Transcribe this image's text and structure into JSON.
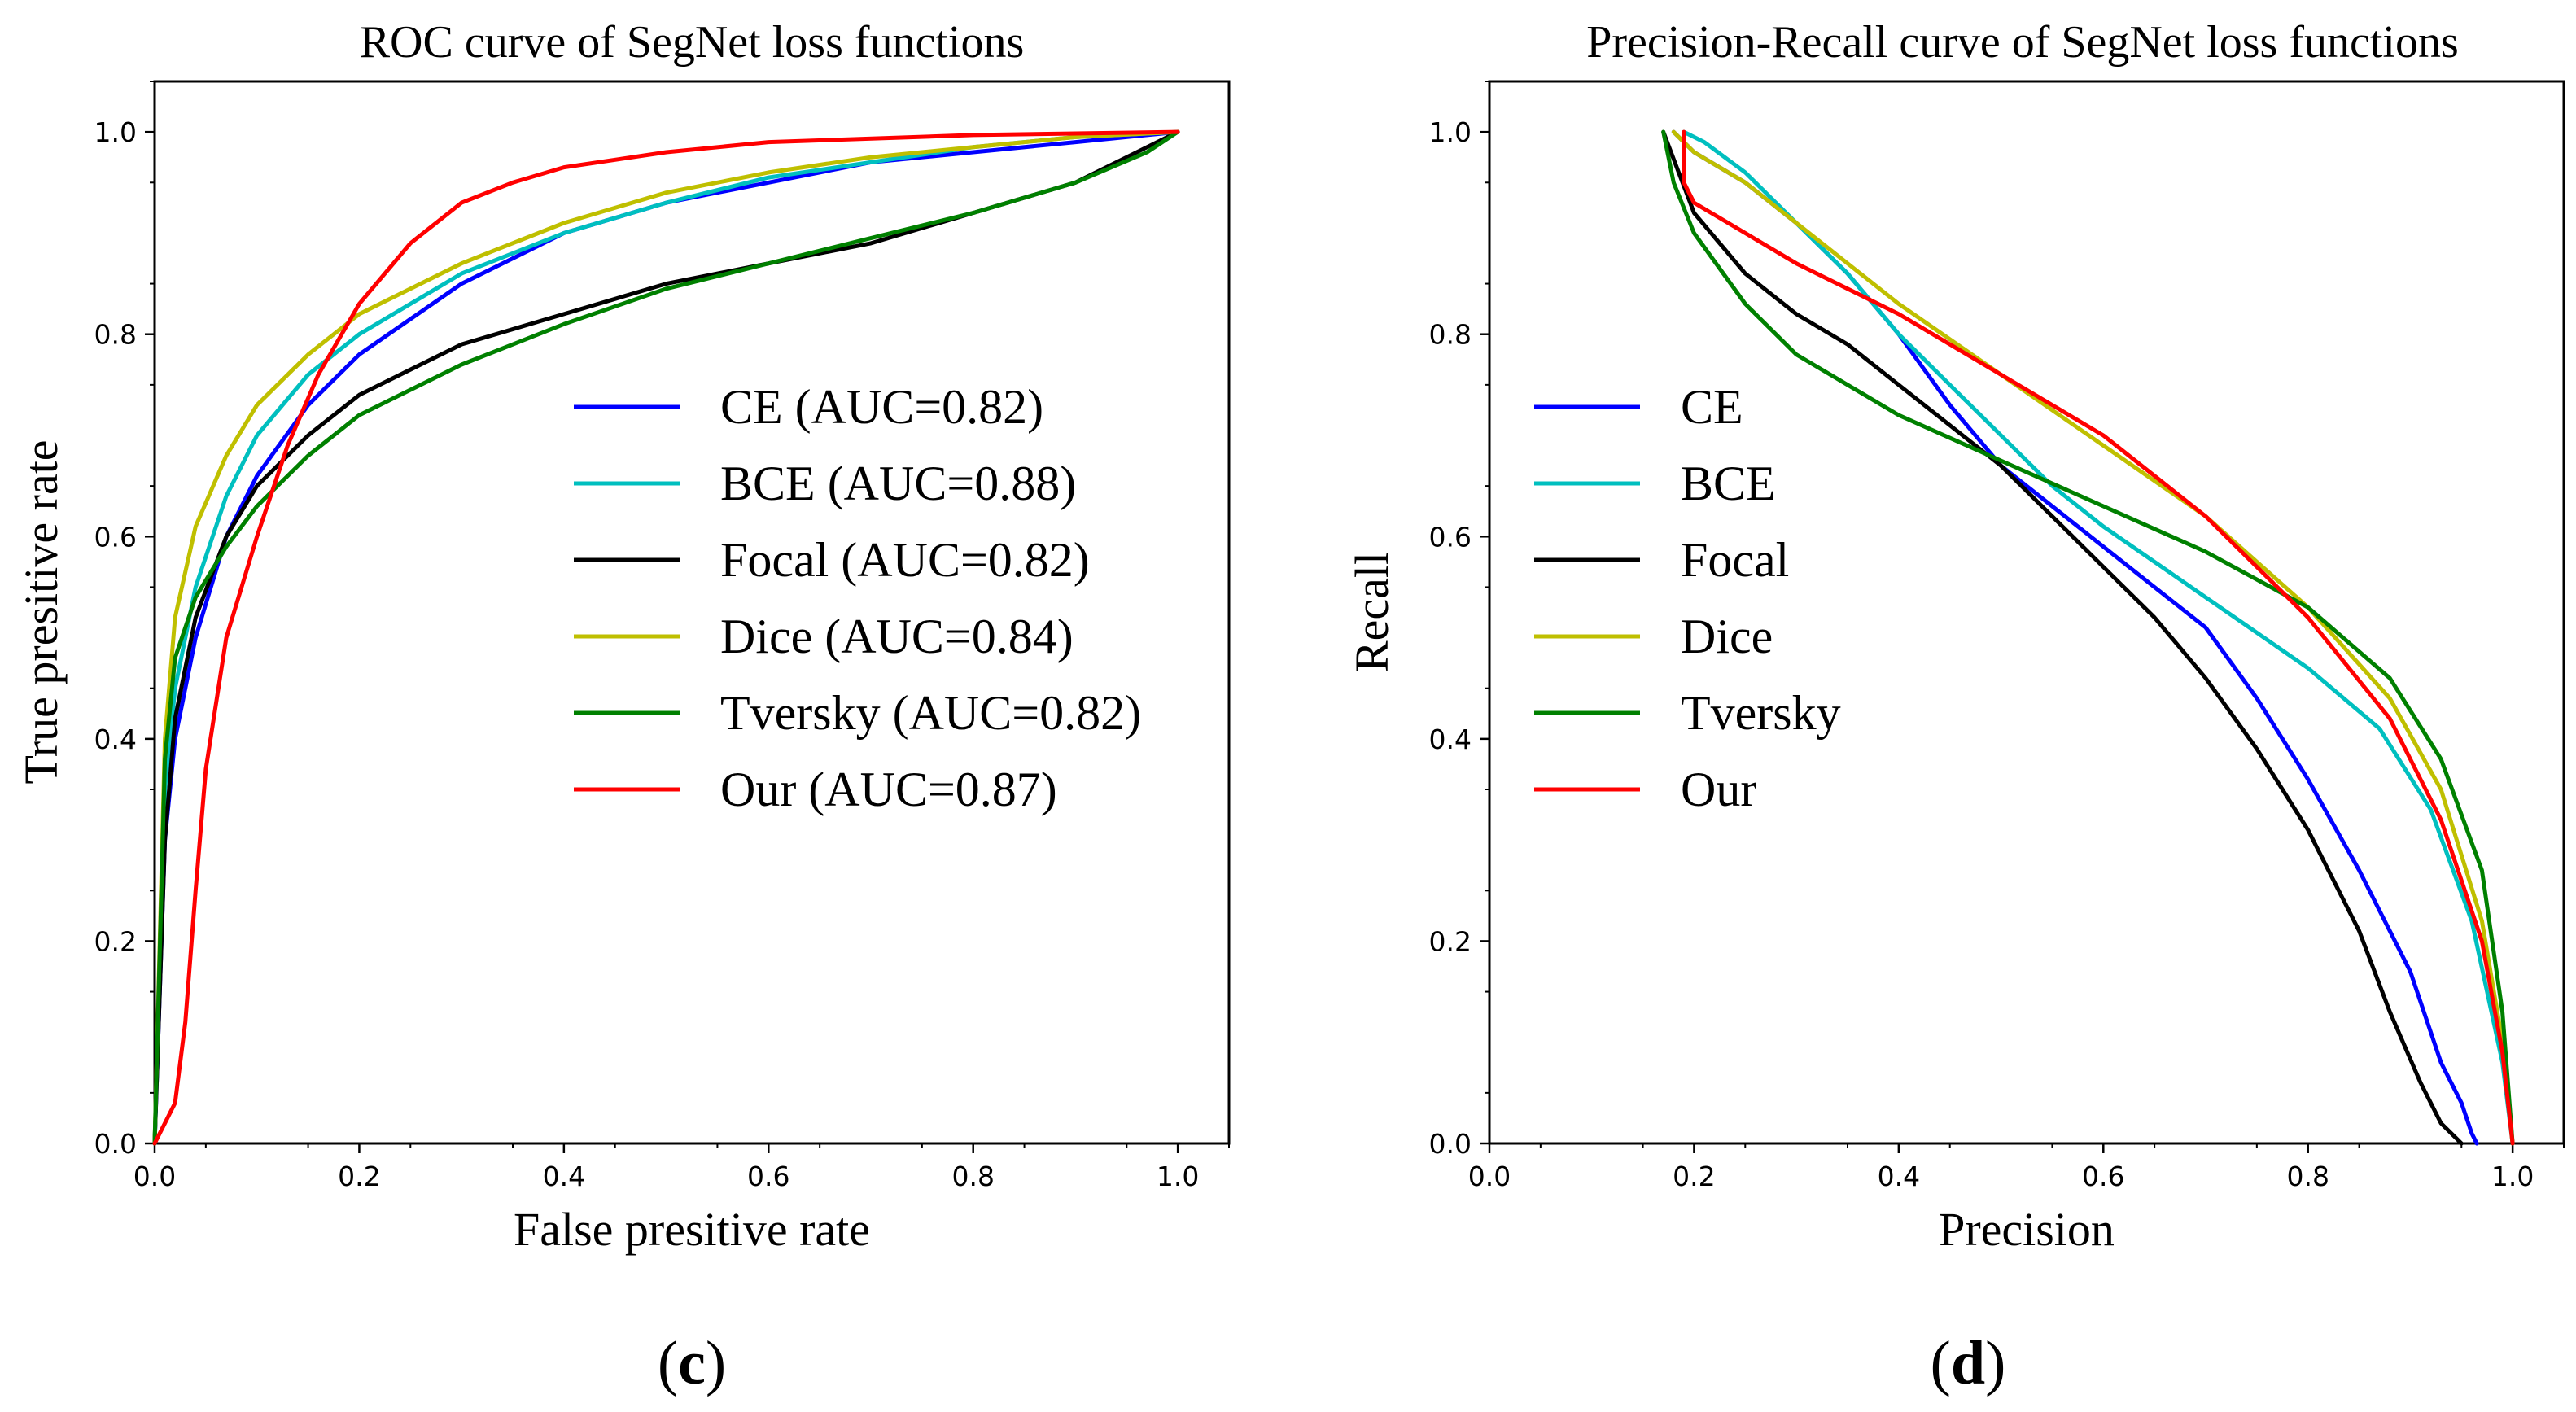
{
  "colors": {
    "CE": "#0000ff",
    "BCE": "#00bfbf",
    "Focal": "#000000",
    "Dice": "#bfbf00",
    "Tversky": "#008000",
    "Our": "#ff0000"
  },
  "chart_data": [
    {
      "type": "line",
      "title": "ROC curve of SegNet loss functions",
      "xlabel": "False presitive rate",
      "ylabel": "True presitive rate",
      "xlim": [
        0,
        1.05
      ],
      "ylim": [
        0,
        1.05
      ],
      "xticks": [
        "0.0",
        "0.2",
        "0.4",
        "0.6",
        "0.8",
        "1.0"
      ],
      "yticks": [
        "0.0",
        "0.2",
        "0.4",
        "0.6",
        "0.8",
        "1.0"
      ],
      "legend_position": "center-right",
      "panel_label_open": "(",
      "panel_label_letter": "c",
      "panel_label_close": ")",
      "series": [
        {
          "key": "CE",
          "name": "CE (AUC=0.82)",
          "points": [
            [
              0,
              0
            ],
            [
              0.01,
              0.3
            ],
            [
              0.02,
              0.4
            ],
            [
              0.04,
              0.5
            ],
            [
              0.07,
              0.6
            ],
            [
              0.1,
              0.66
            ],
            [
              0.15,
              0.73
            ],
            [
              0.2,
              0.78
            ],
            [
              0.3,
              0.85
            ],
            [
              0.4,
              0.9
            ],
            [
              0.5,
              0.93
            ],
            [
              0.6,
              0.95
            ],
            [
              0.7,
              0.97
            ],
            [
              0.8,
              0.98
            ],
            [
              0.9,
              0.99
            ],
            [
              1.0,
              1.0
            ]
          ]
        },
        {
          "key": "BCE",
          "name": "BCE (AUC=0.88)",
          "points": [
            [
              0,
              0
            ],
            [
              0.01,
              0.35
            ],
            [
              0.02,
              0.45
            ],
            [
              0.04,
              0.55
            ],
            [
              0.07,
              0.64
            ],
            [
              0.1,
              0.7
            ],
            [
              0.15,
              0.76
            ],
            [
              0.2,
              0.8
            ],
            [
              0.3,
              0.86
            ],
            [
              0.4,
              0.9
            ],
            [
              0.5,
              0.93
            ],
            [
              0.6,
              0.955
            ],
            [
              0.7,
              0.97
            ],
            [
              0.8,
              0.985
            ],
            [
              0.9,
              0.995
            ],
            [
              1.0,
              1.0
            ]
          ]
        },
        {
          "key": "Focal",
          "name": "Focal (AUC=0.82)",
          "points": [
            [
              0,
              0
            ],
            [
              0.01,
              0.3
            ],
            [
              0.02,
              0.42
            ],
            [
              0.04,
              0.52
            ],
            [
              0.07,
              0.6
            ],
            [
              0.1,
              0.65
            ],
            [
              0.15,
              0.7
            ],
            [
              0.2,
              0.74
            ],
            [
              0.3,
              0.79
            ],
            [
              0.4,
              0.82
            ],
            [
              0.5,
              0.85
            ],
            [
              0.6,
              0.87
            ],
            [
              0.7,
              0.89
            ],
            [
              0.8,
              0.92
            ],
            [
              0.9,
              0.95
            ],
            [
              1.0,
              1.0
            ]
          ]
        },
        {
          "key": "Dice",
          "name": "Dice (AUC=0.84)",
          "points": [
            [
              0,
              0
            ],
            [
              0.01,
              0.4
            ],
            [
              0.02,
              0.52
            ],
            [
              0.04,
              0.61
            ],
            [
              0.07,
              0.68
            ],
            [
              0.1,
              0.73
            ],
            [
              0.15,
              0.78
            ],
            [
              0.2,
              0.82
            ],
            [
              0.3,
              0.87
            ],
            [
              0.4,
              0.91
            ],
            [
              0.5,
              0.94
            ],
            [
              0.6,
              0.96
            ],
            [
              0.7,
              0.975
            ],
            [
              0.8,
              0.985
            ],
            [
              0.9,
              0.995
            ],
            [
              1.0,
              1.0
            ]
          ]
        },
        {
          "key": "Tversky",
          "name": "Tversky (AUC=0.82)",
          "points": [
            [
              0,
              0
            ],
            [
              0.01,
              0.38
            ],
            [
              0.02,
              0.48
            ],
            [
              0.04,
              0.54
            ],
            [
              0.07,
              0.59
            ],
            [
              0.1,
              0.63
            ],
            [
              0.15,
              0.68
            ],
            [
              0.2,
              0.72
            ],
            [
              0.3,
              0.77
            ],
            [
              0.4,
              0.81
            ],
            [
              0.5,
              0.845
            ],
            [
              0.6,
              0.87
            ],
            [
              0.7,
              0.895
            ],
            [
              0.8,
              0.92
            ],
            [
              0.9,
              0.95
            ],
            [
              0.97,
              0.98
            ],
            [
              1.0,
              1.0
            ]
          ]
        },
        {
          "key": "Our",
          "name": "Our (AUC=0.87)",
          "points": [
            [
              0,
              0
            ],
            [
              0.01,
              0.02
            ],
            [
              0.02,
              0.04
            ],
            [
              0.03,
              0.12
            ],
            [
              0.04,
              0.25
            ],
            [
              0.05,
              0.37
            ],
            [
              0.07,
              0.5
            ],
            [
              0.1,
              0.6
            ],
            [
              0.13,
              0.69
            ],
            [
              0.16,
              0.76
            ],
            [
              0.2,
              0.83
            ],
            [
              0.25,
              0.89
            ],
            [
              0.3,
              0.93
            ],
            [
              0.35,
              0.95
            ],
            [
              0.4,
              0.965
            ],
            [
              0.5,
              0.98
            ],
            [
              0.6,
              0.99
            ],
            [
              0.8,
              0.997
            ],
            [
              1.0,
              1.0
            ]
          ]
        }
      ]
    },
    {
      "type": "line",
      "title": "Precision-Recall curve of SegNet loss functions",
      "xlabel": "Precision",
      "ylabel": "Recall",
      "xlim": [
        0,
        1.05
      ],
      "ylim": [
        0,
        1.05
      ],
      "xticks": [
        "0.0",
        "0.2",
        "0.4",
        "0.6",
        "0.8",
        "1.0"
      ],
      "yticks": [
        "0.0",
        "0.2",
        "0.4",
        "0.6",
        "0.8",
        "1.0"
      ],
      "legend_position": "center-left",
      "panel_label_open": "(",
      "panel_label_letter": "d",
      "panel_label_close": ")",
      "series": [
        {
          "key": "CE",
          "name": "CE",
          "points": [
            [
              0.18,
              1.0
            ],
            [
              0.2,
              0.98
            ],
            [
              0.25,
              0.95
            ],
            [
              0.3,
              0.91
            ],
            [
              0.35,
              0.86
            ],
            [
              0.4,
              0.8
            ],
            [
              0.45,
              0.73
            ],
            [
              0.5,
              0.67
            ],
            [
              0.55,
              0.63
            ],
            [
              0.6,
              0.59
            ],
            [
              0.65,
              0.55
            ],
            [
              0.7,
              0.51
            ],
            [
              0.75,
              0.44
            ],
            [
              0.8,
              0.36
            ],
            [
              0.85,
              0.27
            ],
            [
              0.9,
              0.17
            ],
            [
              0.93,
              0.08
            ],
            [
              0.95,
              0.04
            ],
            [
              0.96,
              0.01
            ],
            [
              0.965,
              0.0
            ]
          ]
        },
        {
          "key": "BCE",
          "name": "BCE",
          "points": [
            [
              0.19,
              1.0
            ],
            [
              0.21,
              0.99
            ],
            [
              0.25,
              0.96
            ],
            [
              0.3,
              0.91
            ],
            [
              0.35,
              0.86
            ],
            [
              0.4,
              0.8
            ],
            [
              0.45,
              0.75
            ],
            [
              0.5,
              0.7
            ],
            [
              0.55,
              0.65
            ],
            [
              0.6,
              0.61
            ],
            [
              0.7,
              0.54
            ],
            [
              0.8,
              0.47
            ],
            [
              0.87,
              0.41
            ],
            [
              0.92,
              0.33
            ],
            [
              0.96,
              0.22
            ],
            [
              0.99,
              0.08
            ],
            [
              1.0,
              0.0
            ]
          ]
        },
        {
          "key": "Focal",
          "name": "Focal",
          "points": [
            [
              0.17,
              1.0
            ],
            [
              0.2,
              0.92
            ],
            [
              0.25,
              0.86
            ],
            [
              0.3,
              0.82
            ],
            [
              0.35,
              0.79
            ],
            [
              0.4,
              0.75
            ],
            [
              0.45,
              0.71
            ],
            [
              0.5,
              0.67
            ],
            [
              0.55,
              0.62
            ],
            [
              0.6,
              0.57
            ],
            [
              0.65,
              0.52
            ],
            [
              0.7,
              0.46
            ],
            [
              0.75,
              0.39
            ],
            [
              0.8,
              0.31
            ],
            [
              0.85,
              0.21
            ],
            [
              0.88,
              0.13
            ],
            [
              0.91,
              0.06
            ],
            [
              0.93,
              0.02
            ],
            [
              0.95,
              0.0
            ]
          ]
        },
        {
          "key": "Dice",
          "name": "Dice",
          "points": [
            [
              0.18,
              1.0
            ],
            [
              0.2,
              0.98
            ],
            [
              0.25,
              0.95
            ],
            [
              0.3,
              0.91
            ],
            [
              0.35,
              0.87
            ],
            [
              0.4,
              0.83
            ],
            [
              0.5,
              0.76
            ],
            [
              0.6,
              0.69
            ],
            [
              0.7,
              0.62
            ],
            [
              0.8,
              0.53
            ],
            [
              0.88,
              0.44
            ],
            [
              0.93,
              0.35
            ],
            [
              0.97,
              0.22
            ],
            [
              0.99,
              0.1
            ],
            [
              1.0,
              0.0
            ]
          ]
        },
        {
          "key": "Tversky",
          "name": "Tversky",
          "points": [
            [
              0.17,
              1.0
            ],
            [
              0.18,
              0.95
            ],
            [
              0.2,
              0.9
            ],
            [
              0.25,
              0.83
            ],
            [
              0.3,
              0.78
            ],
            [
              0.4,
              0.72
            ],
            [
              0.5,
              0.675
            ],
            [
              0.6,
              0.63
            ],
            [
              0.7,
              0.585
            ],
            [
              0.8,
              0.53
            ],
            [
              0.88,
              0.46
            ],
            [
              0.93,
              0.38
            ],
            [
              0.97,
              0.27
            ],
            [
              0.99,
              0.13
            ],
            [
              1.0,
              0.0
            ]
          ]
        },
        {
          "key": "Our",
          "name": "Our",
          "points": [
            [
              0.19,
              1.0
            ],
            [
              0.19,
              0.95
            ],
            [
              0.2,
              0.93
            ],
            [
              0.25,
              0.9
            ],
            [
              0.3,
              0.87
            ],
            [
              0.4,
              0.82
            ],
            [
              0.5,
              0.76
            ],
            [
              0.6,
              0.7
            ],
            [
              0.7,
              0.62
            ],
            [
              0.8,
              0.52
            ],
            [
              0.88,
              0.42
            ],
            [
              0.93,
              0.32
            ],
            [
              0.97,
              0.2
            ],
            [
              0.99,
              0.09
            ],
            [
              1.0,
              0.0
            ]
          ]
        }
      ]
    }
  ]
}
